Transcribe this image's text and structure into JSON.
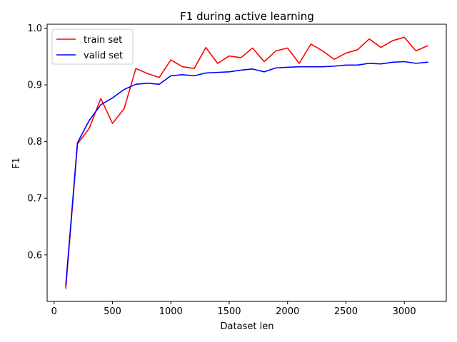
{
  "chart_data": {
    "type": "line",
    "title": "F1 during active learning",
    "xlabel": "Dataset len",
    "ylabel": "F1",
    "xlim": [
      -60,
      3360
    ],
    "ylim": [
      0.518,
      1.007
    ],
    "xticks": [
      0,
      500,
      1000,
      1500,
      2000,
      2500,
      3000
    ],
    "yticks": [
      0.6,
      0.7,
      0.8,
      0.9,
      1.0
    ],
    "xtick_labels": [
      "0",
      "500",
      "1000",
      "1500",
      "2000",
      "2500",
      "3000"
    ],
    "ytick_labels": [
      "0.6",
      "0.7",
      "0.8",
      "0.9",
      "1.0"
    ],
    "grid": false,
    "legend_position": "upper-left",
    "x": [
      100,
      200,
      300,
      400,
      500,
      600,
      700,
      800,
      900,
      1000,
      1100,
      1200,
      1300,
      1400,
      1500,
      1600,
      1700,
      1800,
      1900,
      2000,
      2100,
      2200,
      2300,
      2400,
      2500,
      2600,
      2700,
      2800,
      2900,
      3000,
      3100,
      3200
    ],
    "series": [
      {
        "name": "train set",
        "color": "#ff0000",
        "values": [
          0.541,
          0.796,
          0.823,
          0.876,
          0.832,
          0.858,
          0.929,
          0.92,
          0.913,
          0.944,
          0.932,
          0.929,
          0.966,
          0.938,
          0.951,
          0.948,
          0.965,
          0.941,
          0.96,
          0.965,
          0.938,
          0.972,
          0.96,
          0.945,
          0.956,
          0.962,
          0.981,
          0.966,
          0.978,
          0.984,
          0.96,
          0.969
        ]
      },
      {
        "name": "valid set",
        "color": "#0000ff",
        "values": [
          0.547,
          0.798,
          0.837,
          0.865,
          0.877,
          0.892,
          0.901,
          0.903,
          0.901,
          0.916,
          0.918,
          0.916,
          0.921,
          0.922,
          0.923,
          0.926,
          0.928,
          0.923,
          0.93,
          0.931,
          0.932,
          0.932,
          0.932,
          0.933,
          0.935,
          0.935,
          0.938,
          0.937,
          0.94,
          0.941,
          0.938,
          0.94
        ]
      }
    ]
  }
}
